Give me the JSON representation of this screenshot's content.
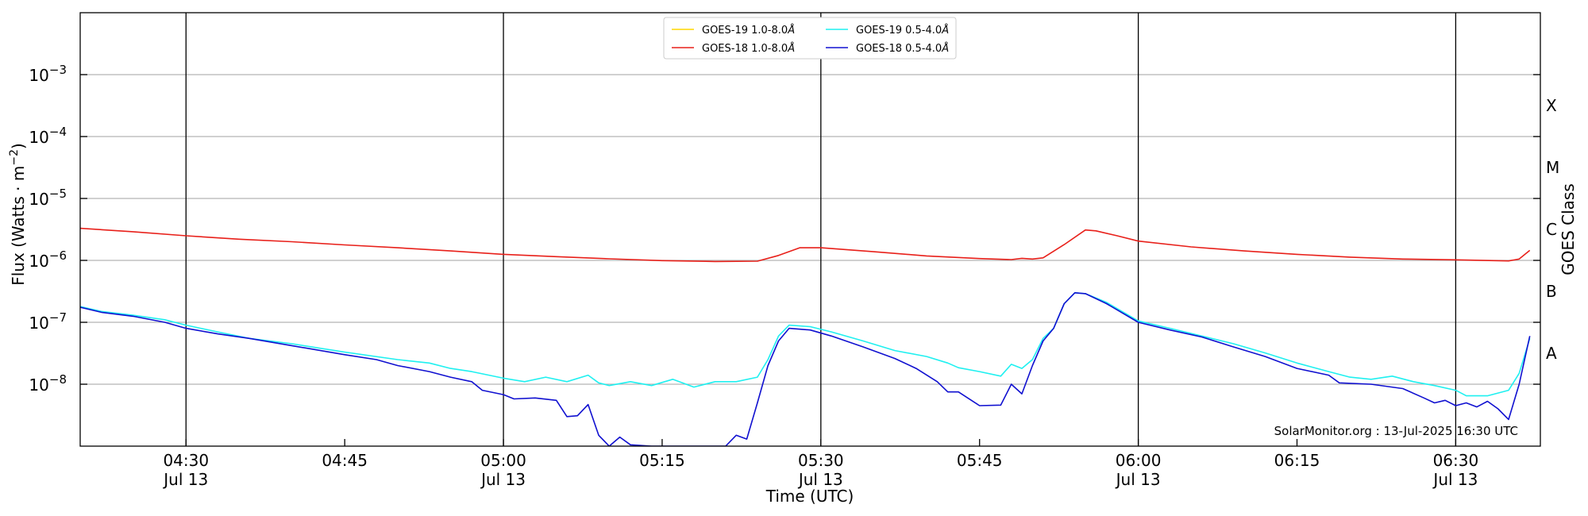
{
  "chart_data": {
    "type": "line",
    "xlabel": "Time (UTC)",
    "ylabel_main": "Flux (Watts · m",
    "ylabel_sup": "−2",
    "ylabel_close": ")",
    "right_label": "GOES Class",
    "credit": "SolarMonitor.org : 13-Jul-2025 16:30 UTC",
    "y_scale": "log",
    "ylim": [
      1e-09,
      0.01
    ],
    "xlim": [
      "04:20",
      "06:38"
    ],
    "y_ticks": [
      {
        "v": 1e-08,
        "base": "10",
        "exp": "−8"
      },
      {
        "v": 1e-07,
        "base": "10",
        "exp": "−7"
      },
      {
        "v": 1e-06,
        "base": "10",
        "exp": "−6"
      },
      {
        "v": 1e-05,
        "base": "10",
        "exp": "−5"
      },
      {
        "v": 0.0001,
        "base": "10",
        "exp": "−4"
      },
      {
        "v": 0.001,
        "base": "10",
        "exp": "−3"
      }
    ],
    "x_ticks": [
      {
        "t": "04:30",
        "l1": "04:30",
        "l2": "Jul 13",
        "vline": true
      },
      {
        "t": "04:45",
        "l1": "04:45",
        "l2": "",
        "vline": false
      },
      {
        "t": "05:00",
        "l1": "05:00",
        "l2": "Jul 13",
        "vline": true
      },
      {
        "t": "05:15",
        "l1": "05:15",
        "l2": "",
        "vline": false
      },
      {
        "t": "05:30",
        "l1": "05:30",
        "l2": "Jul 13",
        "vline": true
      },
      {
        "t": "05:45",
        "l1": "05:45",
        "l2": "",
        "vline": false
      },
      {
        "t": "06:00",
        "l1": "06:00",
        "l2": "Jul 13",
        "vline": true
      },
      {
        "t": "06:15",
        "l1": "06:15",
        "l2": "",
        "vline": false
      },
      {
        "t": "06:30",
        "l1": "06:30",
        "l2": "Jul 13",
        "vline": true
      }
    ],
    "goes_classes": [
      {
        "label": "A",
        "center": 3.16e-08
      },
      {
        "label": "B",
        "center": 3.16e-07
      },
      {
        "label": "C",
        "center": 3.16e-06
      },
      {
        "label": "M",
        "center": 3.16e-05
      },
      {
        "label": "X",
        "center": 0.000316
      }
    ],
    "grid": true,
    "legend_placement": "top-center",
    "series": [
      {
        "name": "GOES-19 1.0-8.0",
        "unit": "Å",
        "color": "#ffd700",
        "points": []
      },
      {
        "name": "GOES-18 1.0-8.0",
        "unit": "Å",
        "color": "#e8201a",
        "points": [
          [
            "04:20",
            3.3e-06
          ],
          [
            "04:25",
            2.9e-06
          ],
          [
            "04:30",
            2.5e-06
          ],
          [
            "04:35",
            2.2e-06
          ],
          [
            "04:40",
            2e-06
          ],
          [
            "04:45",
            1.78e-06
          ],
          [
            "04:50",
            1.6e-06
          ],
          [
            "04:55",
            1.42e-06
          ],
          [
            "05:00",
            1.25e-06
          ],
          [
            "05:05",
            1.15e-06
          ],
          [
            "05:10",
            1.06e-06
          ],
          [
            "05:15",
            9.9e-07
          ],
          [
            "05:20",
            9.6e-07
          ],
          [
            "05:24",
            9.7e-07
          ],
          [
            "05:26",
            1.2e-06
          ],
          [
            "05:28",
            1.6e-06
          ],
          [
            "05:30",
            1.6e-06
          ],
          [
            "05:35",
            1.38e-06
          ],
          [
            "05:40",
            1.18e-06
          ],
          [
            "05:45",
            1.07e-06
          ],
          [
            "05:48",
            1.03e-06
          ],
          [
            "05:49",
            1.08e-06
          ],
          [
            "05:50",
            1.05e-06
          ],
          [
            "05:51",
            1.1e-06
          ],
          [
            "05:53",
            1.8e-06
          ],
          [
            "05:55",
            3.1e-06
          ],
          [
            "05:56",
            3e-06
          ],
          [
            "05:58",
            2.5e-06
          ],
          [
            "06:00",
            2.05e-06
          ],
          [
            "06:05",
            1.65e-06
          ],
          [
            "06:10",
            1.42e-06
          ],
          [
            "06:15",
            1.25e-06
          ],
          [
            "06:20",
            1.13e-06
          ],
          [
            "06:25",
            1.05e-06
          ],
          [
            "06:30",
            1.02e-06
          ],
          [
            "06:35",
            9.8e-07
          ],
          [
            "06:36",
            1.05e-06
          ],
          [
            "06:37",
            1.45e-06
          ]
        ]
      },
      {
        "name": "GOES-19 0.5-4.0",
        "unit": "Å",
        "color": "#1ff0f0",
        "points": [
          [
            "04:20",
            1.8e-07
          ],
          [
            "04:22",
            1.5e-07
          ],
          [
            "04:25",
            1.3e-07
          ],
          [
            "04:28",
            1.1e-07
          ],
          [
            "04:30",
            9e-08
          ],
          [
            "04:33",
            7e-08
          ],
          [
            "04:36",
            5.5e-08
          ],
          [
            "04:40",
            4.5e-08
          ],
          [
            "04:45",
            3.3e-08
          ],
          [
            "04:50",
            2.5e-08
          ],
          [
            "04:53",
            2.2e-08
          ],
          [
            "04:55",
            1.8e-08
          ],
          [
            "04:57",
            1.6e-08
          ],
          [
            "05:00",
            1.25e-08
          ],
          [
            "05:02",
            1.1e-08
          ],
          [
            "05:04",
            1.3e-08
          ],
          [
            "05:06",
            1.1e-08
          ],
          [
            "05:08",
            1.4e-08
          ],
          [
            "05:09",
            1.05e-08
          ],
          [
            "05:10",
            9.5e-09
          ],
          [
            "05:12",
            1.1e-08
          ],
          [
            "05:14",
            9.5e-09
          ],
          [
            "05:16",
            1.2e-08
          ],
          [
            "05:18",
            9e-09
          ],
          [
            "05:20",
            1.1e-08
          ],
          [
            "05:22",
            1.1e-08
          ],
          [
            "05:24",
            1.3e-08
          ],
          [
            "05:25",
            2.5e-08
          ],
          [
            "05:26",
            6e-08
          ],
          [
            "05:27",
            9e-08
          ],
          [
            "05:29",
            8.5e-08
          ],
          [
            "05:31",
            7e-08
          ],
          [
            "05:34",
            5e-08
          ],
          [
            "05:37",
            3.5e-08
          ],
          [
            "05:40",
            2.8e-08
          ],
          [
            "05:42",
            2.2e-08
          ],
          [
            "05:43",
            1.85e-08
          ],
          [
            "05:45",
            1.6e-08
          ],
          [
            "05:47",
            1.35e-08
          ],
          [
            "05:48",
            2.1e-08
          ],
          [
            "05:49",
            1.8e-08
          ],
          [
            "05:50",
            2.5e-08
          ],
          [
            "05:51",
            5.5e-08
          ],
          [
            "05:52",
            8e-08
          ],
          [
            "05:53",
            2e-07
          ],
          [
            "05:54",
            3e-07
          ],
          [
            "05:55",
            2.9e-07
          ],
          [
            "05:57",
            2.1e-07
          ],
          [
            "06:00",
            1.05e-07
          ],
          [
            "06:03",
            8e-08
          ],
          [
            "06:06",
            6e-08
          ],
          [
            "06:09",
            4.5e-08
          ],
          [
            "06:12",
            3.2e-08
          ],
          [
            "06:15",
            2.2e-08
          ],
          [
            "06:18",
            1.6e-08
          ],
          [
            "06:20",
            1.3e-08
          ],
          [
            "06:22",
            1.2e-08
          ],
          [
            "06:24",
            1.35e-08
          ],
          [
            "06:26",
            1.1e-08
          ],
          [
            "06:28",
            9.5e-09
          ],
          [
            "06:30",
            8e-09
          ],
          [
            "06:31",
            6.5e-09
          ],
          [
            "06:33",
            6.5e-09
          ],
          [
            "06:35",
            8e-09
          ],
          [
            "06:36",
            1.5e-08
          ],
          [
            "06:37",
            5.5e-08
          ]
        ]
      },
      {
        "name": "GOES-18 0.5-4.0",
        "unit": "Å",
        "color": "#1010d0",
        "points": [
          [
            "04:20",
            1.75e-07
          ],
          [
            "04:22",
            1.45e-07
          ],
          [
            "04:25",
            1.25e-07
          ],
          [
            "04:28",
            1e-07
          ],
          [
            "04:30",
            8e-08
          ],
          [
            "04:33",
            6.5e-08
          ],
          [
            "04:36",
            5.5e-08
          ],
          [
            "04:40",
            4.2e-08
          ],
          [
            "04:45",
            3e-08
          ],
          [
            "04:48",
            2.5e-08
          ],
          [
            "04:50",
            2e-08
          ],
          [
            "04:53",
            1.6e-08
          ],
          [
            "04:55",
            1.3e-08
          ],
          [
            "04:57",
            1.1e-08
          ],
          [
            "04:58",
            8e-09
          ],
          [
            "05:00",
            6.8e-09
          ],
          [
            "05:01",
            5.8e-09
          ],
          [
            "05:03",
            6e-09
          ],
          [
            "05:05",
            5.5e-09
          ],
          [
            "05:06",
            3e-09
          ],
          [
            "05:07",
            3.1e-09
          ],
          [
            "05:08",
            4.7e-09
          ],
          [
            "05:09",
            1.5e-09
          ],
          [
            "05:10",
            1e-09
          ],
          [
            "05:11",
            1.4e-09
          ],
          [
            "05:12",
            1.05e-09
          ],
          [
            "05:14",
            1e-09
          ],
          [
            "05:21",
            1e-09
          ],
          [
            "05:22",
            1.5e-09
          ],
          [
            "05:23",
            1.3e-09
          ],
          [
            "05:24",
            5e-09
          ],
          [
            "05:25",
            2e-08
          ],
          [
            "05:26",
            5e-08
          ],
          [
            "05:27",
            8e-08
          ],
          [
            "05:29",
            7.5e-08
          ],
          [
            "05:31",
            6e-08
          ],
          [
            "05:34",
            4e-08
          ],
          [
            "05:37",
            2.6e-08
          ],
          [
            "05:39",
            1.8e-08
          ],
          [
            "05:41",
            1.1e-08
          ],
          [
            "05:42",
            7.5e-09
          ],
          [
            "05:43",
            7.5e-09
          ],
          [
            "05:45",
            4.5e-09
          ],
          [
            "05:47",
            4.6e-09
          ],
          [
            "05:48",
            1e-08
          ],
          [
            "05:49",
            7e-09
          ],
          [
            "05:50",
            2e-08
          ],
          [
            "05:51",
            5e-08
          ],
          [
            "05:52",
            8e-08
          ],
          [
            "05:53",
            2e-07
          ],
          [
            "05:54",
            3e-07
          ],
          [
            "05:55",
            2.9e-07
          ],
          [
            "05:57",
            2e-07
          ],
          [
            "06:00",
            1e-07
          ],
          [
            "06:03",
            7.5e-08
          ],
          [
            "06:06",
            5.8e-08
          ],
          [
            "06:09",
            4e-08
          ],
          [
            "06:12",
            2.8e-08
          ],
          [
            "06:15",
            1.8e-08
          ],
          [
            "06:18",
            1.4e-08
          ],
          [
            "06:19",
            1.05e-08
          ],
          [
            "06:22",
            1e-08
          ],
          [
            "06:25",
            8.5e-09
          ],
          [
            "06:27",
            6e-09
          ],
          [
            "06:28",
            5e-09
          ],
          [
            "06:29",
            5.5e-09
          ],
          [
            "06:30",
            4.5e-09
          ],
          [
            "06:31",
            5e-09
          ],
          [
            "06:32",
            4.3e-09
          ],
          [
            "06:33",
            5.3e-09
          ],
          [
            "06:34",
            4e-09
          ],
          [
            "06:35",
            2.7e-09
          ],
          [
            "06:36",
            1e-08
          ],
          [
            "06:37",
            6e-08
          ]
        ]
      }
    ]
  }
}
